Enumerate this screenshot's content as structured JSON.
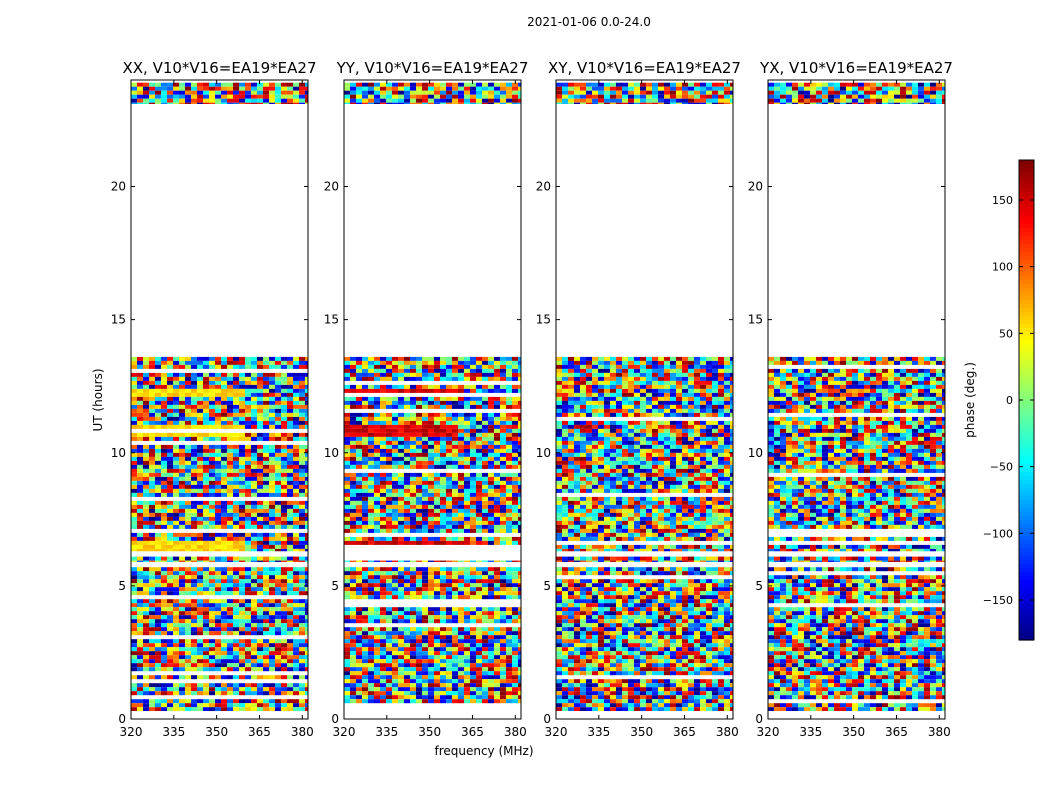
{
  "chart_data": {
    "type": "heatmap",
    "suptitle": "2021-01-06 0.0-24.0",
    "xlabel": "frequency (MHz)",
    "ylabel": "UT (hours)",
    "xlim": [
      320,
      382
    ],
    "ylim": [
      0,
      24
    ],
    "xticks": [
      320,
      335,
      350,
      365,
      380
    ],
    "yticks": [
      0,
      5,
      10,
      15,
      20
    ],
    "colorbar": {
      "label": "phase (deg.)",
      "range": [
        -180,
        180
      ],
      "ticks": [
        -150,
        -100,
        -50,
        0,
        50,
        100,
        150
      ],
      "colormap": [
        "#00007f",
        "#0000ff",
        "#007fff",
        "#00ffff",
        "#7fff7f",
        "#ffff00",
        "#ff7f00",
        "#ff0000",
        "#7f0000"
      ]
    },
    "data_present_ut_ranges": [
      [
        0.3,
        5.7
      ],
      [
        5.9,
        6.1
      ],
      [
        6.3,
        13.6
      ],
      [
        23.1,
        23.9
      ]
    ],
    "panels": [
      {
        "title": "XX, V10*V16=EA19*EA27",
        "pattern": "structured-positive"
      },
      {
        "title": "YY, V10*V16=EA19*EA27",
        "pattern": "structured-high"
      },
      {
        "title": "XY, V10*V16=EA19*EA27",
        "pattern": "noise"
      },
      {
        "title": "YX, V10*V16=EA19*EA27",
        "pattern": "noise"
      }
    ]
  }
}
